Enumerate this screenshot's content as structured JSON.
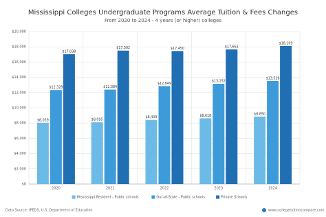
{
  "chart_data": {
    "type": "bar",
    "title": "Mississippi Colleges Undergraduate Programs Average Tuition & Fees Changes",
    "subtitle": "From 2020 to 2024 - 4 years (or higher) colleges",
    "categories": [
      "2020",
      "2021",
      "2022",
      "2023",
      "2024"
    ],
    "series": [
      {
        "name": "Mississippi Resident - Public schools",
        "color": "#6cbbe6",
        "values": [
          8039,
          8095,
          8409,
          8618,
          8850
        ],
        "value_labels": [
          "$8,039",
          "$8,095",
          "$8,409",
          "$8,618",
          "$8,850"
        ]
      },
      {
        "name": "Out-of-State - Public schools",
        "color": "#3e9bd9",
        "values": [
          12328,
          12384,
          12849,
          13152,
          13516
        ],
        "value_labels": [
          "$12,328",
          "$12,384",
          "$12,849",
          "$13,152",
          "$13,516"
        ]
      },
      {
        "name": "Private Schools",
        "color": "#1f6fb2",
        "values": [
          17038,
          17502,
          17450,
          17662,
          18109
        ],
        "value_labels": [
          "$17,038",
          "$17,502",
          "$17,450",
          "$17,662",
          "$18,109"
        ]
      }
    ],
    "ylim": [
      0,
      20000
    ],
    "yticks": [
      {
        "value": 0,
        "label": "$0"
      },
      {
        "value": 2000,
        "label": "$2,000"
      },
      {
        "value": 4000,
        "label": "$4,000"
      },
      {
        "value": 6000,
        "label": "$6,000"
      },
      {
        "value": 8000,
        "label": "$8,000"
      },
      {
        "value": 10000,
        "label": "$10,000"
      },
      {
        "value": 12000,
        "label": "$12,000"
      },
      {
        "value": 14000,
        "label": "$14,000"
      },
      {
        "value": 16000,
        "label": "$16,000"
      },
      {
        "value": 18000,
        "label": "$18,000"
      },
      {
        "value": 20000,
        "label": "$20,000"
      }
    ],
    "grid": true,
    "legend": "bottom",
    "source": "Data Source: IPEDS, U.S. Department of Education",
    "website": "www.collegetuitioncompare.com"
  }
}
